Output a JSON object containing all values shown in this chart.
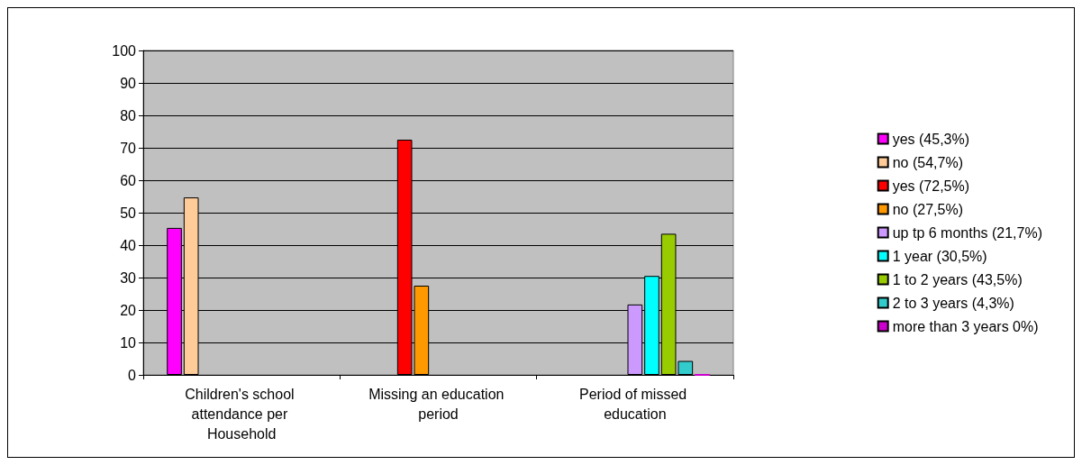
{
  "chart_data": {
    "type": "bar",
    "categories": [
      "Children's school attendance per Household",
      "Missing an education period",
      "Period of missed education"
    ],
    "series": [
      {
        "name": "yes (45,3%)",
        "color": "#ff00ff",
        "values": [
          45.3,
          null,
          null
        ]
      },
      {
        "name": "no (54,7%)",
        "color": "#ffcc99",
        "values": [
          54.7,
          null,
          null
        ]
      },
      {
        "name": "yes (72,5%)",
        "color": "#ff0000",
        "values": [
          null,
          72.5,
          null
        ]
      },
      {
        "name": "no (27,5%)",
        "color": "#ff9900",
        "values": [
          null,
          27.5,
          null
        ]
      },
      {
        "name": "up tp 6 months (21,7%)",
        "color": "#cc99ff",
        "values": [
          null,
          null,
          21.7
        ]
      },
      {
        "name": "1 year (30,5%)",
        "color": "#00ffff",
        "values": [
          null,
          null,
          30.5
        ]
      },
      {
        "name": "1 to 2 years (43,5%)",
        "color": "#99cc00",
        "values": [
          null,
          null,
          43.5
        ]
      },
      {
        "name": "2 to 3 years (4,3%)",
        "color": "#33cccc",
        "values": [
          null,
          null,
          4.3
        ]
      },
      {
        "name": "more than 3 years 0%)",
        "color": "#cc00cc",
        "values": [
          null,
          null,
          0
        ]
      }
    ],
    "ylim": [
      0,
      100
    ],
    "yticks": [
      0,
      10,
      20,
      30,
      40,
      50,
      60,
      70,
      80,
      90,
      100
    ],
    "grid": "y",
    "legend": "right"
  }
}
